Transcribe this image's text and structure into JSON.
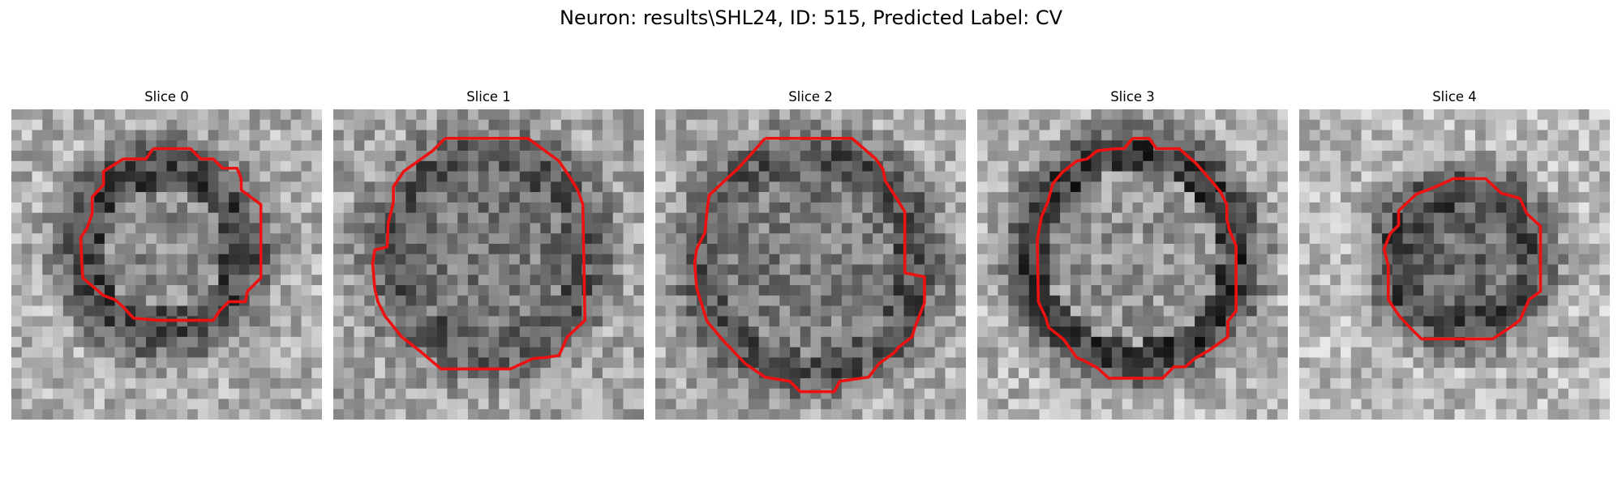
{
  "figure": {
    "title": "Neuron: results\\SHL24, ID: 515, Predicted Label: CV"
  },
  "colors": {
    "contour": "#ee1111",
    "background": "#ffffff",
    "colormap": "grayscale"
  },
  "panels": [
    {
      "title": "Slice 0"
    },
    {
      "title": "Slice 1"
    },
    {
      "title": "Slice 2"
    },
    {
      "title": "Slice 3"
    },
    {
      "title": "Slice 4"
    }
  ]
}
